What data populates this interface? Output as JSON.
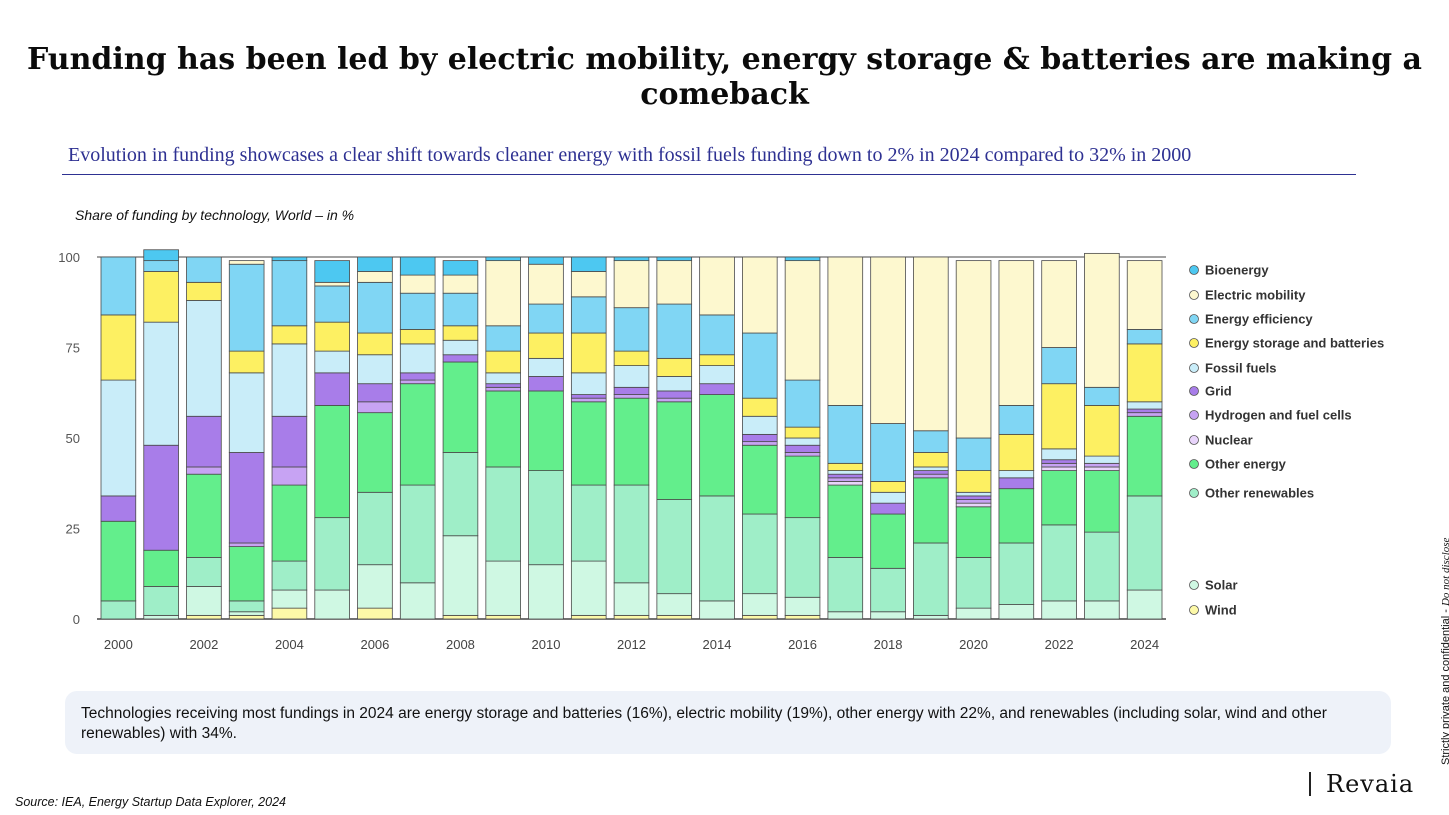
{
  "title": "Funding has been led by electric mobility, energy storage & batteries are making a comeback",
  "subtitle": "Evolution in funding showcases a clear shift towards cleaner energy with fossil fuels funding down to 2% in 2024 compared to 32% in 2000",
  "chart_caption": "Share of funding by technology, World – in %",
  "note": "Technologies receiving most fundings in 2024 are energy storage and batteries (16%), electric mobility (19%), other energy with 22%, and renewables (including solar, wind and other renewables) with 34%.",
  "source": "Source: IEA, Energy Startup Data Explorer, 2024",
  "confidential_lead": "Strictly private and confidential - ",
  "confidential_tail": "Do not disclose",
  "brand": "Revaia",
  "chart_data": {
    "type": "bar",
    "stacked": true,
    "categories": [
      "2000",
      "2001",
      "2002",
      "2003",
      "2004",
      "2005",
      "2006",
      "2007",
      "2008",
      "2009",
      "2010",
      "2011",
      "2012",
      "2013",
      "2014",
      "2015",
      "2016",
      "2017",
      "2018",
      "2019",
      "2020",
      "2021",
      "2022",
      "2023",
      "2024"
    ],
    "x_tick_labels": [
      "2000",
      "",
      "2002",
      "",
      "2004",
      "",
      "2006",
      "",
      "2008",
      "",
      "2010",
      "",
      "2012",
      "",
      "2014",
      "",
      "2016",
      "",
      "2018",
      "",
      "2020",
      "",
      "2022",
      "",
      "2024"
    ],
    "ylim": [
      0,
      100
    ],
    "y_ticks": [
      0,
      25,
      50,
      75,
      100
    ],
    "grid": false,
    "legend_position": "right",
    "series": [
      {
        "name": "Wind",
        "color": "#fdf9a8",
        "values": [
          0,
          0,
          1,
          1,
          3,
          0,
          3,
          0,
          1,
          1,
          0,
          1,
          1,
          1,
          0,
          1,
          1,
          0,
          0,
          0,
          0,
          0,
          0,
          0,
          0
        ]
      },
      {
        "name": "Solar",
        "color": "#cff8e3",
        "values": [
          0,
          1,
          8,
          1,
          5,
          8,
          12,
          10,
          22,
          15,
          15,
          15,
          9,
          6,
          5,
          6,
          5,
          2,
          2,
          1,
          3,
          4,
          5,
          5,
          8
        ]
      },
      {
        "name": "Other renewables",
        "color": "#9feec8",
        "values": [
          5,
          8,
          8,
          3,
          8,
          20,
          20,
          27,
          23,
          26,
          26,
          21,
          27,
          26,
          29,
          22,
          22,
          15,
          12,
          20,
          14,
          17,
          21,
          19,
          26
        ]
      },
      {
        "name": "Other energy",
        "color": "#63ee8c",
        "values": [
          22,
          10,
          23,
          15,
          21,
          31,
          22,
          28,
          25,
          21,
          22,
          23,
          24,
          27,
          28,
          19,
          17,
          20,
          15,
          18,
          14,
          15,
          15,
          17,
          22
        ]
      },
      {
        "name": "Nuclear",
        "color": "#e8d4fb",
        "values": [
          0,
          0,
          0,
          0,
          0,
          0,
          0,
          0,
          0,
          0,
          0,
          0,
          0,
          0,
          0,
          0,
          0,
          1,
          0,
          0,
          1,
          0,
          1,
          1,
          0
        ]
      },
      {
        "name": "Hydrogen and fuel cells",
        "color": "#c7a3f3",
        "values": [
          0,
          0,
          2,
          1,
          5,
          0,
          3,
          1,
          0,
          1,
          0,
          1,
          1,
          1,
          0,
          1,
          1,
          1,
          0,
          1,
          1,
          0,
          1,
          1,
          1
        ]
      },
      {
        "name": "Grid",
        "color": "#a87de9",
        "values": [
          7,
          29,
          14,
          25,
          14,
          9,
          5,
          2,
          2,
          1,
          4,
          1,
          2,
          2,
          3,
          2,
          2,
          1,
          3,
          1,
          1,
          3,
          1,
          0,
          1
        ]
      },
      {
        "name": "Fossil fuels",
        "color": "#c9edf9",
        "values": [
          32,
          34,
          32,
          22,
          20,
          6,
          8,
          8,
          4,
          3,
          5,
          6,
          6,
          4,
          5,
          5,
          2,
          1,
          3,
          1,
          1,
          2,
          3,
          2,
          2
        ]
      },
      {
        "name": "Energy storage and batteries",
        "color": "#fdf062",
        "values": [
          18,
          14,
          5,
          6,
          5,
          8,
          6,
          4,
          4,
          6,
          7,
          11,
          4,
          5,
          3,
          5,
          3,
          2,
          3,
          4,
          6,
          10,
          18,
          14,
          16
        ]
      },
      {
        "name": "Energy efficiency",
        "color": "#80d6f4",
        "values": [
          16,
          3,
          7,
          24,
          18,
          10,
          14,
          10,
          9,
          7,
          8,
          10,
          12,
          15,
          11,
          18,
          13,
          16,
          16,
          6,
          9,
          8,
          10,
          5,
          4
        ]
      },
      {
        "name": "Electric mobility",
        "color": "#fdf8cf",
        "values": [
          0,
          0,
          0,
          1,
          0,
          1,
          3,
          5,
          5,
          18,
          11,
          7,
          13,
          12,
          16,
          21,
          33,
          41,
          46,
          48,
          49,
          40,
          24,
          37,
          19
        ]
      },
      {
        "name": "Bioenergy",
        "color": "#4dc8f1",
        "values": [
          0,
          3,
          0,
          0,
          1,
          6,
          4,
          5,
          4,
          1,
          2,
          4,
          1,
          1,
          0,
          0,
          1,
          0,
          0,
          0,
          0,
          0,
          0,
          0,
          0
        ]
      }
    ],
    "legend_order": [
      "Bioenergy",
      "Electric mobility",
      "Energy efficiency",
      "Energy storage and batteries",
      "Fossil fuels",
      "Grid",
      "Hydrogen and fuel cells",
      "Nuclear",
      "Other energy",
      "Other renewables",
      "Solar",
      "Wind"
    ]
  }
}
